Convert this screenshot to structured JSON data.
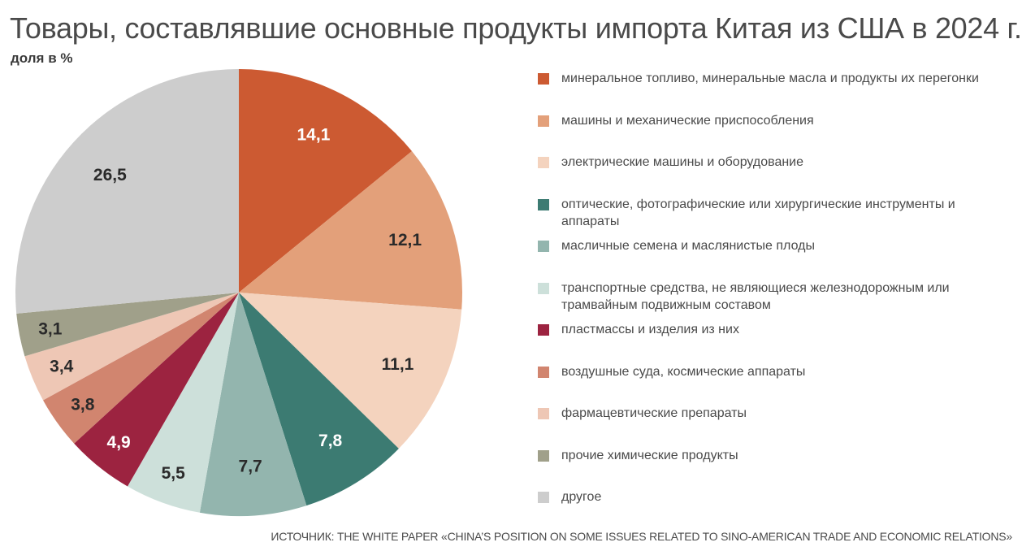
{
  "title": "Товары, составлявшие основные продукты импорта Китая из США в 2024 г.",
  "subtitle": "доля в %",
  "source": "ИСТОЧНИК: THE WHITE PAPER «CHINA’S POSITION ON SOME ISSUES RELATED TO SINO-AMERICAN TRADE AND ECONOMIC RELATIONS»",
  "chart_data": {
    "type": "pie",
    "title": "Товары, составлявшие основные продукты импорта Китая из США в 2024 г.",
    "subtitle": "доля в %",
    "legend_position": "right",
    "slices": [
      {
        "label": "минеральное топливо, минеральные масла и продукты их перегонки",
        "value": 14.1,
        "value_text": "14,1",
        "color": "#cc5a32",
        "text_color": "#ffffff"
      },
      {
        "label": "машины и механические приспособления",
        "value": 12.1,
        "value_text": "12,1",
        "color": "#e3a07a",
        "text_color": "#2a2a2a"
      },
      {
        "label": "электрические машины и оборудование",
        "value": 11.1,
        "value_text": "11,1",
        "color": "#f4d3be",
        "text_color": "#2a2a2a"
      },
      {
        "label": "оптические, фотографические или хирургические инструменты и аппараты",
        "value": 7.8,
        "value_text": "7,8",
        "color": "#3c7b72",
        "text_color": "#ffffff"
      },
      {
        "label": "масличные семена и маслянистые плоды",
        "value": 7.7,
        "value_text": "7,7",
        "color": "#93b5ae",
        "text_color": "#2a2a2a"
      },
      {
        "label": "транспортные средства, не являющиеся железнодорожным или трамвайным подвижным составом",
        "value": 5.5,
        "value_text": "5,5",
        "color": "#cde0da",
        "text_color": "#2a2a2a"
      },
      {
        "label": "пластмассы и изделия из них",
        "value": 4.9,
        "value_text": "4,9",
        "color": "#9c2340",
        "text_color": "#ffffff"
      },
      {
        "label": "воздушные суда, космические аппараты",
        "value": 3.8,
        "value_text": "3,8",
        "color": "#d1856f",
        "text_color": "#2a2a2a"
      },
      {
        "label": "фармацевтические препараты",
        "value": 3.4,
        "value_text": "3,4",
        "color": "#eec7b5",
        "text_color": "#2a2a2a"
      },
      {
        "label": "прочие химические продукты",
        "value": 3.1,
        "value_text": "3,1",
        "color": "#a0a08a",
        "text_color": "#2a2a2a"
      },
      {
        "label": "другое",
        "value": 26.5,
        "value_text": "26,5",
        "color": "#cdcdcd",
        "text_color": "#2a2a2a"
      }
    ]
  }
}
